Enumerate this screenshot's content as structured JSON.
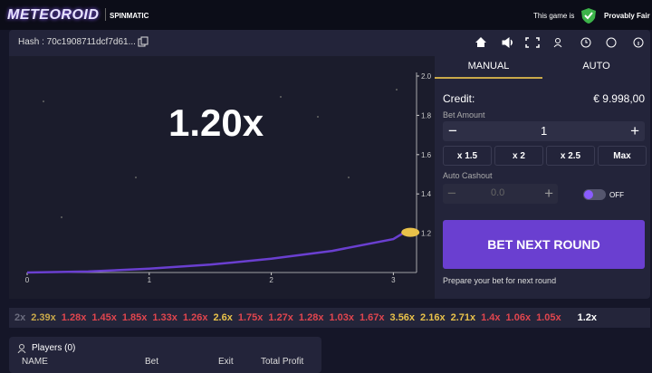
{
  "header": {
    "logo": "METEOROID",
    "brand": "SPINMATIC",
    "fair_prefix": "This game is",
    "fair_label": "Provably Fair"
  },
  "toolbar": {
    "hash": "Hash : 70c1908711dcf7d61..."
  },
  "game": {
    "multiplier": "1.20x",
    "graph": {
      "xlim": [
        0,
        3.19
      ],
      "ylim": [
        1.0,
        2.0
      ],
      "xticks": [
        0,
        1,
        2,
        3
      ],
      "yticks": [
        1.2,
        1.4,
        1.6,
        1.8,
        {
          "value": 2,
          "label": "2.0"
        }
      ],
      "curve": {
        "x": [
          0,
          0.5,
          1,
          1.5,
          2,
          2.5,
          3,
          3.08
        ],
        "y": [
          1.0,
          1.005,
          1.02,
          1.04,
          1.07,
          1.11,
          1.17,
          1.2
        ],
        "color": "#6a3fd0"
      }
    }
  },
  "panel": {
    "tabs": [
      "MANUAL",
      "AUTO"
    ],
    "credit_label": "Credit:",
    "credit": "€ 9.998,00",
    "bet_label": "Bet Amount",
    "bet_minus": "−",
    "bet_value": "1",
    "bet_plus": "+",
    "quick": [
      "x 1.5",
      "x 2",
      "x 2.5",
      "Max"
    ],
    "cashout_label": "Auto Cashout",
    "cashout_minus": "−",
    "cashout_value": "0.0",
    "cashout_plus": "+",
    "toggle": "OFF",
    "button": "BET NEXT ROUND",
    "hint": "Prepare your bet for next round"
  },
  "history": [
    {
      "text": "2x",
      "color": "#6b6c7e"
    },
    {
      "text": "2.39x",
      "color": "#c9a94a"
    },
    {
      "text": "1.28x",
      "color": "#e0454e"
    },
    {
      "text": "1.45x",
      "color": "#e0454e"
    },
    {
      "text": "1.85x",
      "color": "#e0454e"
    },
    {
      "text": "1.33x",
      "color": "#e0454e"
    },
    {
      "text": "1.26x",
      "color": "#e0454e"
    },
    {
      "text": "2.6x",
      "color": "#e8c14a"
    },
    {
      "text": "1.75x",
      "color": "#e0454e"
    },
    {
      "text": "1.27x",
      "color": "#e0454e"
    },
    {
      "text": "1.28x",
      "color": "#e0454e"
    },
    {
      "text": "1.03x",
      "color": "#e0454e"
    },
    {
      "text": "1.67x",
      "color": "#e0454e"
    },
    {
      "text": "3.56x",
      "color": "#e8c14a"
    },
    {
      "text": "2.16x",
      "color": "#e8c14a"
    },
    {
      "text": "2.71x",
      "color": "#e8c14a"
    },
    {
      "text": "1.4x",
      "color": "#e0454e"
    },
    {
      "text": "1.06x",
      "color": "#e0454e"
    },
    {
      "text": "1.05x",
      "color": "#e0454e"
    },
    {
      "text": "1.2x",
      "color": "#ffffff"
    }
  ],
  "players": {
    "title": "Players (0)",
    "columns": [
      "NAME",
      "Bet",
      "Exit",
      "Total Profit"
    ]
  }
}
